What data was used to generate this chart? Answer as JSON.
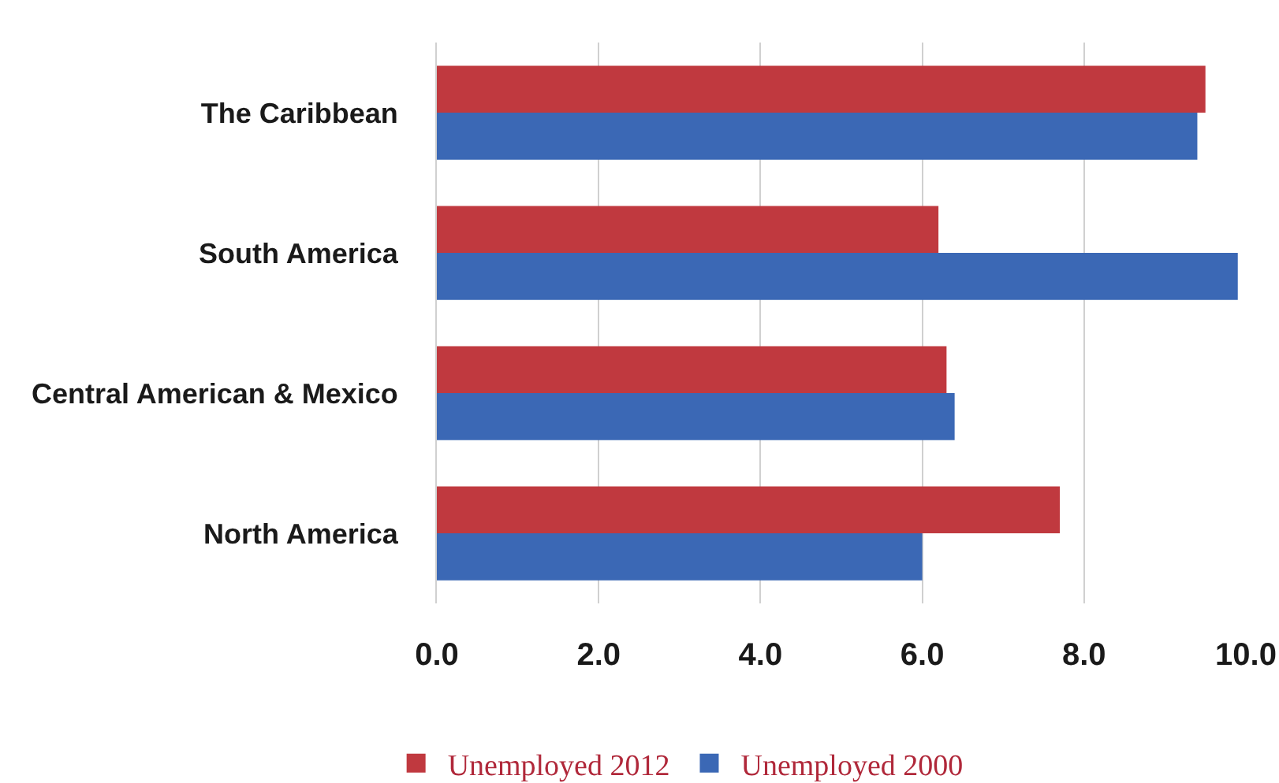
{
  "chart_data": {
    "type": "bar",
    "orientation": "horizontal",
    "categories": [
      "The Caribbean",
      "South America",
      "Central American & Mexico",
      "North America"
    ],
    "series": [
      {
        "name": "Unemployed 2012",
        "color": "#c0393f",
        "values": [
          9.5,
          6.2,
          6.3,
          7.7
        ]
      },
      {
        "name": "Unemployed 2000",
        "color": "#3b68b5",
        "values": [
          9.4,
          9.9,
          6.4,
          6.0
        ]
      }
    ],
    "xlim": [
      0,
      10
    ],
    "xticks": [
      {
        "value": 0,
        "label": "0.0"
      },
      {
        "value": 2,
        "label": "2.0"
      },
      {
        "value": 4,
        "label": "4.0"
      },
      {
        "value": 6,
        "label": "6.0"
      },
      {
        "value": 8,
        "label": "8.0"
      },
      {
        "value": 10,
        "label": "10.0"
      }
    ],
    "grid": "x",
    "legend": "bottom"
  }
}
